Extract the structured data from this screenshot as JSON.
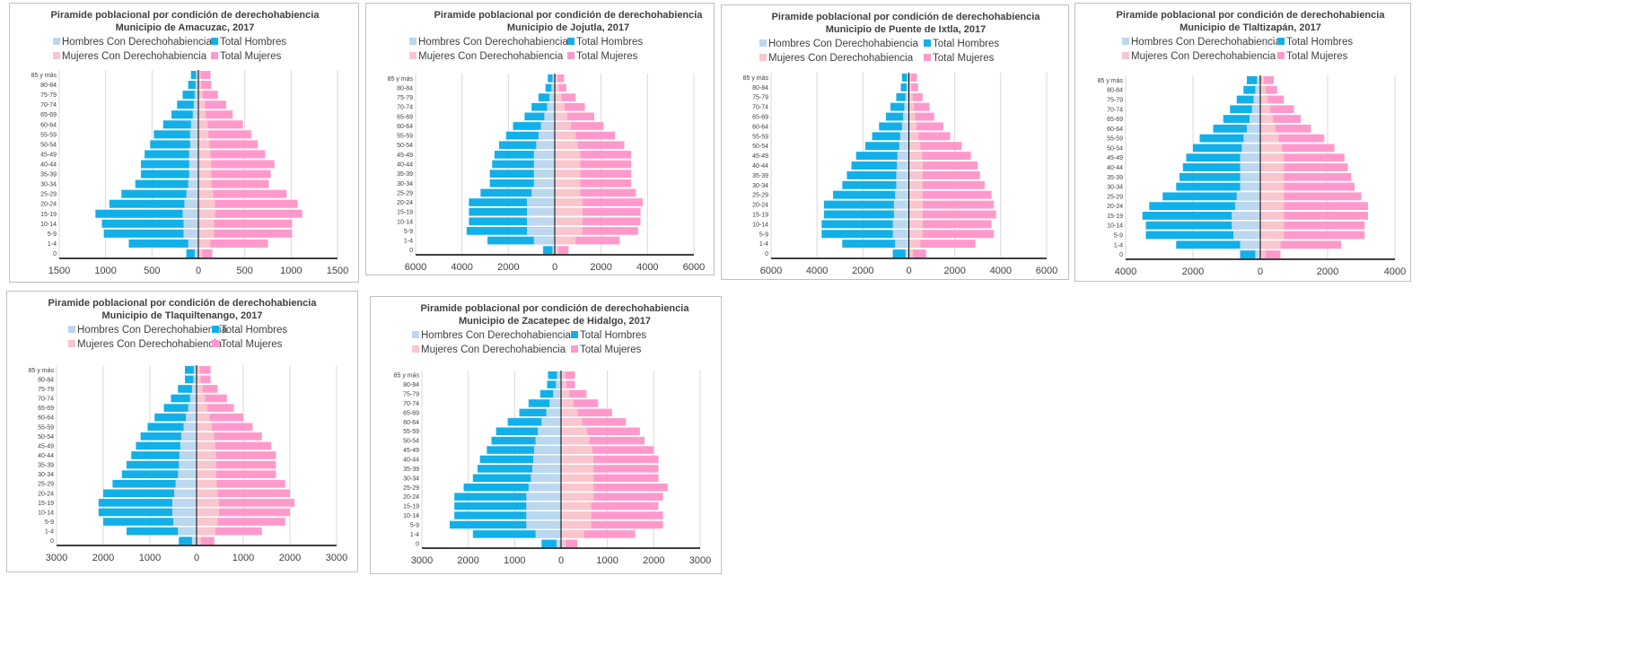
{
  "colors": {
    "total_hombres": "#12b0e8",
    "hombres_con": "#bdd7ee",
    "total_mujeres": "#ff99cc",
    "mujeres_con": "#f9c6cd",
    "gridline": "#d9d9d9",
    "axis": "#000000",
    "text": "#404040"
  },
  "chart_data": [
    {
      "type": "bar",
      "title": "Piramide poblacional por condición de derechohabiencia",
      "subtitle": "Municipio de Amacuzac, 2017",
      "legend": [
        "Hombres Con Derechohabiencia",
        "Total Hombres",
        "Mujeres Con Derechohabiencia",
        "Total Mujeres"
      ],
      "legend_position": "top",
      "grid": true,
      "categories": [
        "0",
        "1-4",
        "5-9",
        "10-14",
        "15-19",
        "20-24",
        "25-29",
        "30-34",
        "35-39",
        "40-44",
        "45-49",
        "50-54",
        "55-59",
        "60-64",
        "65-69",
        "70-74",
        "75-79",
        "80-84",
        "85 y más"
      ],
      "xlim": [
        -1500,
        1500
      ],
      "xticks": [
        -1500,
        -1000,
        -500,
        0,
        500,
        1000,
        1500
      ],
      "xtick_labels": [
        "1500",
        "1000",
        "500",
        "0",
        "500",
        "1000",
        "1500"
      ],
      "series": [
        {
          "name": "Total Hombres",
          "values": [
            -130,
            -750,
            -1020,
            -1040,
            -1110,
            -960,
            -830,
            -680,
            -620,
            -620,
            -580,
            -520,
            -480,
            -380,
            -290,
            -230,
            -170,
            -110,
            -80
          ]
        },
        {
          "name": "Hombres Con Derechohabiencia",
          "values": [
            -40,
            -110,
            -160,
            -160,
            -170,
            -150,
            -130,
            -110,
            -100,
            -100,
            -100,
            -90,
            -90,
            -80,
            -60,
            -50,
            -40,
            -30,
            -25
          ]
        },
        {
          "name": "Total Mujeres",
          "values": [
            150,
            750,
            1010,
            1010,
            1120,
            1070,
            950,
            760,
            780,
            820,
            720,
            640,
            570,
            480,
            370,
            300,
            210,
            140,
            130
          ]
        },
        {
          "name": "Mujeres Con Derechohabiencia",
          "values": [
            40,
            130,
            170,
            170,
            180,
            180,
            160,
            140,
            140,
            140,
            130,
            120,
            110,
            100,
            80,
            70,
            50,
            30,
            25
          ]
        }
      ]
    },
    {
      "type": "bar",
      "title": "Piramide poblacional por condición de derechohabiencia",
      "subtitle": "Municipio de Jojutla, 2017",
      "legend": [
        "Hombres Con Derechohabiencia",
        "Total Hombres",
        "Mujeres Con Derechohabiencia",
        "Total Mujeres"
      ],
      "legend_position": "top",
      "grid": true,
      "categories": [
        "0",
        "1-4",
        "5-9",
        "10-14",
        "15-19",
        "20-24",
        "25-29",
        "30-34",
        "35-39",
        "40-44",
        "45-49",
        "50-54",
        "55-59",
        "60-64",
        "65-69",
        "70-74",
        "75-79",
        "80-84",
        "85 y más"
      ],
      "xlim": [
        -6000,
        6000
      ],
      "xticks": [
        -6000,
        -4000,
        -2000,
        0,
        2000,
        4000,
        6000
      ],
      "xtick_labels": [
        "6000",
        "4000",
        "2000",
        "0",
        "2000",
        "4000",
        "6000"
      ],
      "series": [
        {
          "name": "Total Hombres",
          "values": [
            -500,
            -2900,
            -3800,
            -3700,
            -3700,
            -3700,
            -3200,
            -2800,
            -2800,
            -2700,
            -2600,
            -2400,
            -2100,
            -1800,
            -1300,
            -1000,
            -700,
            -400,
            -300
          ]
        },
        {
          "name": "Hombres Con Derechohabiencia",
          "values": [
            -100,
            -900,
            -1200,
            -1200,
            -1200,
            -1200,
            -1000,
            -900,
            -900,
            -900,
            -900,
            -800,
            -700,
            -600,
            -450,
            -330,
            -230,
            -140,
            -100
          ]
        },
        {
          "name": "Total Mujeres",
          "values": [
            600,
            2800,
            3600,
            3700,
            3700,
            3800,
            3500,
            3300,
            3300,
            3300,
            3300,
            3000,
            2600,
            2100,
            1700,
            1300,
            900,
            500,
            400
          ]
        },
        {
          "name": "Mujeres Con Derechohabiencia",
          "values": [
            150,
            900,
            1200,
            1200,
            1200,
            1200,
            1100,
            1100,
            1100,
            1100,
            1100,
            1000,
            900,
            700,
            550,
            420,
            300,
            180,
            130
          ]
        }
      ]
    },
    {
      "type": "bar",
      "title": "Piramide poblacional por condición de derechohabiencia",
      "subtitle": "Municipio de Puente de Ixtla, 2017",
      "legend": [
        "Hombres Con Derechohabiencia",
        "Total Hombres",
        "Mujeres Con Derechohabiencia",
        "Total Mujeres"
      ],
      "legend_position": "top",
      "grid": true,
      "categories": [
        "0",
        "1-4",
        "5-9",
        "10-14",
        "15-19",
        "20-24",
        "25-29",
        "30-34",
        "35-39",
        "40-44",
        "45-49",
        "50-54",
        "55-59",
        "60-64",
        "65-69",
        "70-74",
        "75-79",
        "80-84",
        "85 y más"
      ],
      "xlim": [
        -6000,
        6000
      ],
      "xticks": [
        -6000,
        -4000,
        -2000,
        0,
        2000,
        4000,
        6000
      ],
      "xtick_labels": [
        "6000",
        "4000",
        "2000",
        "0",
        "2000",
        "4000",
        "6000"
      ],
      "series": [
        {
          "name": "Total Hombres",
          "values": [
            -700,
            -2900,
            -3800,
            -3800,
            -3700,
            -3700,
            -3300,
            -2900,
            -2700,
            -2500,
            -2300,
            -1900,
            -1600,
            -1300,
            -1000,
            -800,
            -550,
            -350,
            -300
          ]
        },
        {
          "name": "Hombres Con Derechohabiencia",
          "values": [
            -150,
            -600,
            -700,
            -700,
            -650,
            -650,
            -600,
            -550,
            -550,
            -520,
            -500,
            -420,
            -380,
            -300,
            -250,
            -200,
            -150,
            -100,
            -80
          ]
        },
        {
          "name": "Total Mujeres",
          "values": [
            750,
            2900,
            3700,
            3600,
            3800,
            3700,
            3600,
            3300,
            3100,
            3000,
            2700,
            2300,
            1800,
            1500,
            1100,
            900,
            600,
            400,
            350
          ]
        },
        {
          "name": "Mujeres Con Derechohabiencia",
          "values": [
            180,
            500,
            600,
            600,
            600,
            600,
            600,
            600,
            600,
            600,
            580,
            500,
            420,
            330,
            270,
            220,
            170,
            120,
            90
          ]
        }
      ]
    },
    {
      "type": "bar",
      "title": "Piramide poblacional por condición de derechohabiencia",
      "subtitle": "Municipio de Tlaltizapán, 2017",
      "legend": [
        "Hombres Con Derechohabiencia",
        "Total Hombres",
        "Mujeres Con Derechohabiencia",
        "Total Mujeres"
      ],
      "legend_position": "top",
      "grid": true,
      "categories": [
        "0",
        "1-4",
        "5-9",
        "10-14",
        "15-19",
        "20-24",
        "25-29",
        "30-34",
        "35-39",
        "40-44",
        "45-49",
        "50-54",
        "55-59",
        "60-64",
        "65-69",
        "70-74",
        "75-79",
        "80-84",
        "85 y más"
      ],
      "xlim": [
        -4000,
        4000
      ],
      "xticks": [
        -4000,
        -2000,
        0,
        2000,
        4000
      ],
      "xtick_labels": [
        "4000",
        "2000",
        "0",
        "2000",
        "4000"
      ],
      "series": [
        {
          "name": "Total Hombres",
          "values": [
            -600,
            -2500,
            -3400,
            -3400,
            -3500,
            -3300,
            -2900,
            -2500,
            -2400,
            -2300,
            -2200,
            -2000,
            -1800,
            -1400,
            -1100,
            -900,
            -700,
            -500,
            -400
          ]
        },
        {
          "name": "Hombres Con Derechohabiencia",
          "values": [
            -150,
            -600,
            -800,
            -850,
            -850,
            -750,
            -700,
            -600,
            -600,
            -600,
            -600,
            -550,
            -500,
            -400,
            -320,
            -250,
            -200,
            -150,
            -100
          ]
        },
        {
          "name": "Total Mujeres",
          "values": [
            600,
            2400,
            3100,
            3100,
            3200,
            3200,
            3000,
            2800,
            2700,
            2600,
            2500,
            2200,
            1900,
            1500,
            1200,
            1000,
            700,
            500,
            400
          ]
        },
        {
          "name": "Mujeres Con Derechohabiencia",
          "values": [
            150,
            600,
            700,
            700,
            700,
            700,
            700,
            700,
            700,
            700,
            700,
            650,
            550,
            450,
            380,
            300,
            220,
            160,
            110
          ]
        }
      ]
    },
    {
      "type": "bar",
      "title": "Piramide poblacional por condición de derechohabiencia",
      "subtitle": "Municipio de Tlaquiltenango, 2017",
      "legend": [
        "Hombres Con Derechohabiencia",
        "Total Hombres",
        "Mujeres Con Derechohabiencia",
        "Total Mujeres"
      ],
      "legend_position": "top",
      "grid": true,
      "categories": [
        "0",
        "1-4",
        "5-9",
        "10-14",
        "15-19",
        "20-24",
        "25-29",
        "30-34",
        "35-39",
        "40-44",
        "45-49",
        "50-54",
        "55-59",
        "60-64",
        "65-69",
        "70-74",
        "75-79",
        "80-84",
        "85 y más"
      ],
      "xlim": [
        -3000,
        3000
      ],
      "xticks": [
        -3000,
        -2000,
        -1000,
        0,
        1000,
        2000,
        3000
      ],
      "xtick_labels": [
        "3000",
        "2000",
        "1000",
        "0",
        "1000",
        "2000",
        "3000"
      ],
      "series": [
        {
          "name": "Total Hombres",
          "values": [
            -380,
            -1500,
            -2000,
            -2100,
            -2100,
            -2000,
            -1800,
            -1600,
            -1500,
            -1400,
            -1300,
            -1200,
            -1050,
            -900,
            -700,
            -550,
            -400,
            -250,
            -250
          ]
        },
        {
          "name": "Hombres Con Derechohabiencia",
          "values": [
            -100,
            -400,
            -500,
            -520,
            -520,
            -480,
            -450,
            -400,
            -380,
            -370,
            -350,
            -330,
            -280,
            -230,
            -180,
            -140,
            -100,
            -70,
            -60
          ]
        },
        {
          "name": "Total Mujeres",
          "values": [
            380,
            1400,
            1900,
            2000,
            2100,
            2000,
            1900,
            1700,
            1700,
            1700,
            1600,
            1400,
            1200,
            1000,
            800,
            650,
            450,
            300,
            300
          ]
        },
        {
          "name": "Mujeres Con Derechohabiencia",
          "values": [
            100,
            400,
            450,
            480,
            480,
            450,
            430,
            420,
            420,
            420,
            400,
            380,
            330,
            280,
            230,
            180,
            130,
            90,
            70
          ]
        }
      ]
    },
    {
      "type": "bar",
      "title": "Piramide poblacional por condición de derechohabiencia",
      "subtitle": "Municipio de Zacatepec de Hidalgo, 2017",
      "legend": [
        "Hombres Con Derechohabiencia",
        "Total Hombres",
        "Mujeres Con Derechohabiencia",
        "Total Mujeres"
      ],
      "legend_position": "top",
      "grid": true,
      "categories": [
        "0",
        "1-4",
        "5-9",
        "10-14",
        "15-19",
        "20-24",
        "25-29",
        "30-34",
        "35-39",
        "40-44",
        "45-49",
        "50-54",
        "55-59",
        "60-64",
        "65-69",
        "70-74",
        "75-79",
        "80-84",
        "85 y más"
      ],
      "xlim": [
        -3000,
        3000
      ],
      "xticks": [
        -3000,
        -2000,
        -1000,
        0,
        1000,
        2000,
        3000
      ],
      "xtick_labels": [
        "3000",
        "2000",
        "1000",
        "0",
        "1000",
        "2000",
        "3000"
      ],
      "series": [
        {
          "name": "Total Hombres",
          "values": [
            -420,
            -1900,
            -2400,
            -2300,
            -2300,
            -2300,
            -2100,
            -1900,
            -1800,
            -1750,
            -1600,
            -1500,
            -1400,
            -1150,
            -900,
            -700,
            -450,
            -300,
            -280
          ]
        },
        {
          "name": "Hombres Con Derechohabiencia",
          "values": [
            -100,
            -550,
            -750,
            -750,
            -750,
            -750,
            -700,
            -650,
            -620,
            -600,
            -580,
            -550,
            -500,
            -420,
            -320,
            -250,
            -170,
            -110,
            -90
          ]
        },
        {
          "name": "Total Mujeres",
          "values": [
            350,
            1600,
            2200,
            2200,
            2100,
            2200,
            2300,
            2100,
            2100,
            2100,
            2000,
            1800,
            1700,
            1400,
            1100,
            800,
            550,
            300,
            300
          ]
        },
        {
          "name": "Mujeres Con Derechohabiencia",
          "values": [
            100,
            500,
            650,
            650,
            650,
            700,
            700,
            700,
            700,
            700,
            680,
            620,
            560,
            460,
            360,
            270,
            180,
            110,
            90
          ]
        }
      ]
    }
  ]
}
